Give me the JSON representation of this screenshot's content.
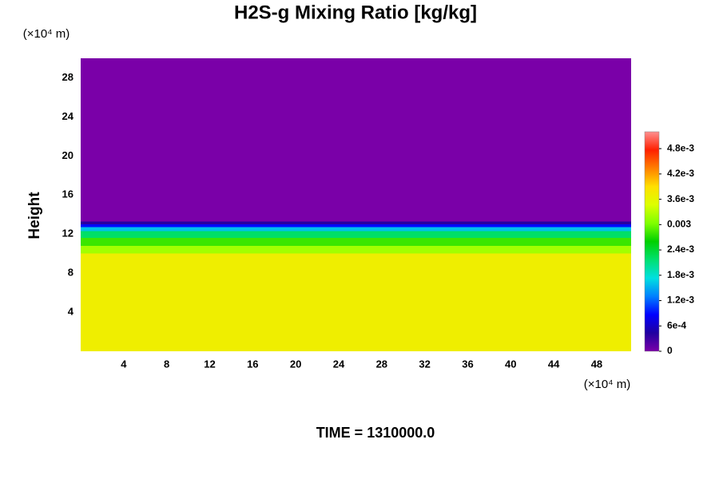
{
  "chart_data": {
    "type": "field",
    "title": "H2S-g Mixing Ratio [kg/kg]",
    "y_label": "Height",
    "y_unit": "(×10⁴ m)",
    "x_unit": "(×10⁴ m)",
    "footer": "TIME = 1310000.0",
    "xlim": [
      0,
      51.2
    ],
    "xticks": [
      4,
      8,
      12,
      16,
      20,
      24,
      28,
      32,
      36,
      40,
      44,
      48
    ],
    "ylim": [
      0,
      30
    ],
    "yticks": [
      4,
      8,
      12,
      16,
      20,
      24,
      28
    ],
    "profile": {
      "height": [
        0,
        10,
        10.8,
        11.6,
        12.3,
        12.7,
        13.0,
        13.3
      ],
      "values": [
        0.0037,
        0.0032,
        0.0028,
        0.0022,
        0.0016,
        0.0009,
        0.0004,
        0
      ]
    },
    "clim": [
      0,
      0.0052
    ],
    "colormap": [
      "#7a00a8",
      "#2000a0",
      "#0000ff",
      "#0080ff",
      "#00e0e0",
      "#00e070",
      "#00d000",
      "#80ff00",
      "#dcff00",
      "#ffe000",
      "#ff8000",
      "#ff2000",
      "#ff9090"
    ],
    "cticks": [
      0,
      {
        "value": 0.0006,
        "label": "6e-4"
      },
      {
        "value": 0.0012,
        "label": "1.2e-3"
      },
      {
        "value": 0.0018,
        "label": "1.8e-3"
      },
      {
        "value": 0.0024,
        "label": "2.4e-3"
      },
      0.003,
      {
        "value": 0.0036,
        "label": "3.6e-3"
      },
      {
        "value": 0.0042,
        "label": "4.2e-3"
      },
      {
        "value": 0.0048,
        "label": "4.8e-3"
      }
    ],
    "grid": false
  }
}
